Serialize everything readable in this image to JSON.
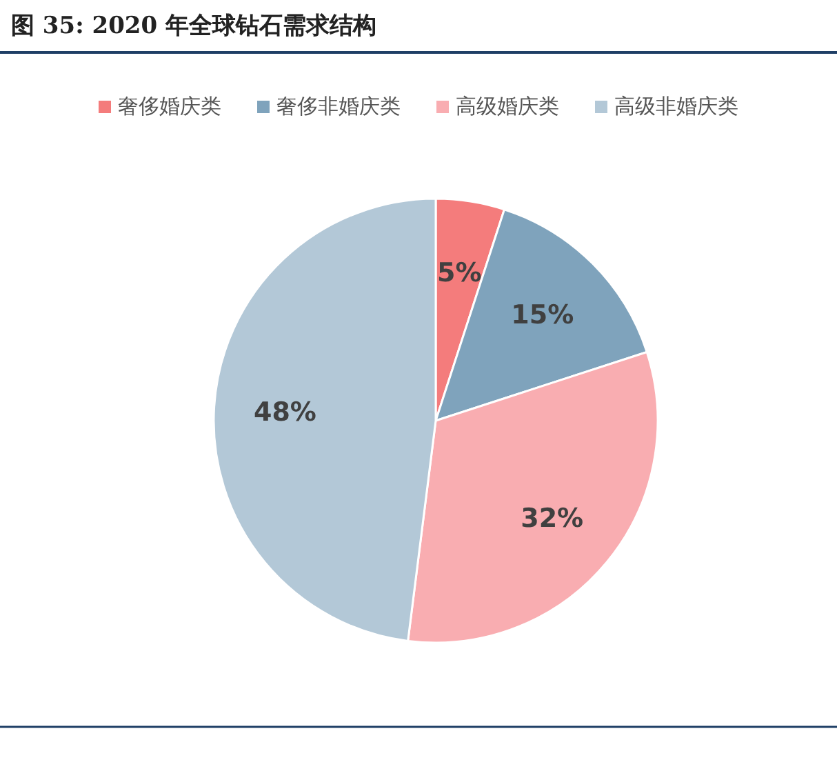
{
  "chart_data": {
    "type": "pie",
    "title": "图 35:      2020 年全球钻石需求结构",
    "categories": [
      "奢侈婚庆类",
      "奢侈非婚庆类",
      "高级婚庆类",
      "高级非婚庆类"
    ],
    "values": [
      5,
      15,
      32,
      48
    ],
    "colors": [
      "#f47c7c",
      "#7fa3bc",
      "#f9adb1",
      "#b3c8d7"
    ],
    "value_labels": [
      "5%",
      "15%",
      "32%",
      "48%"
    ],
    "legend": "top"
  }
}
